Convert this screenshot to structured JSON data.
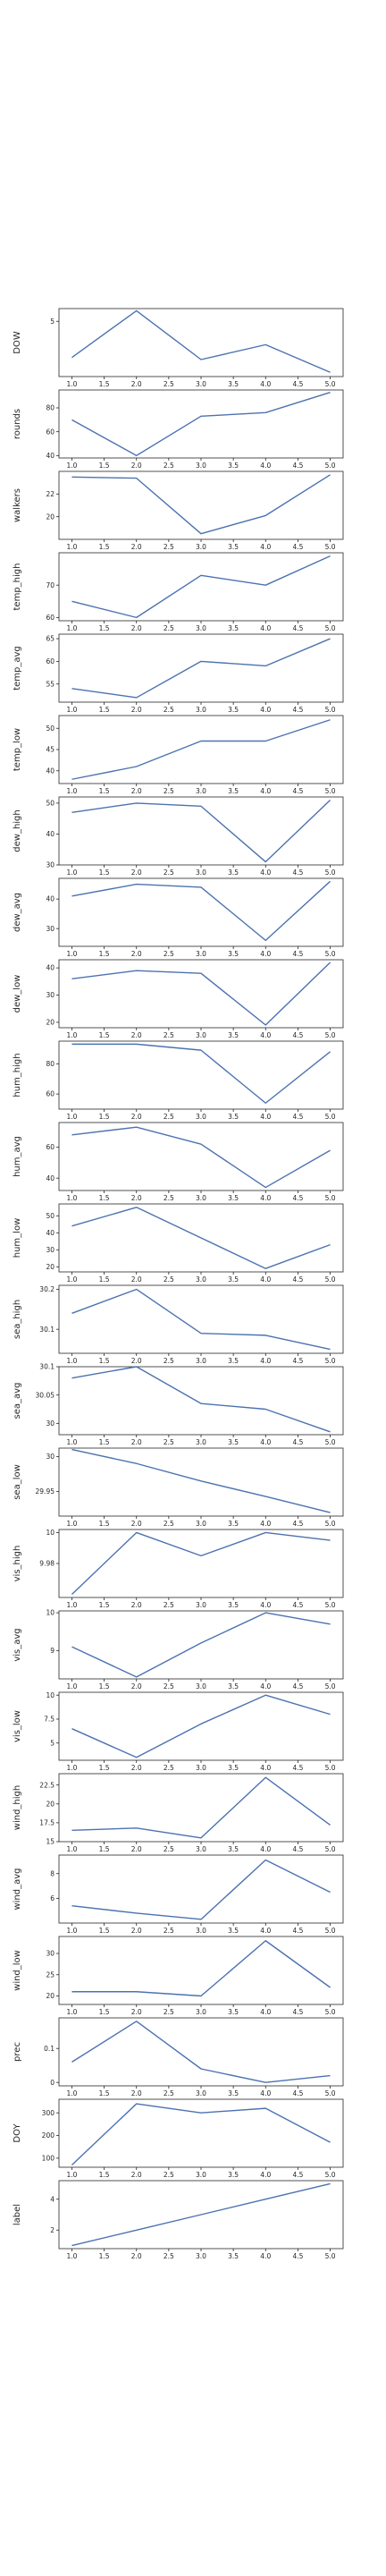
{
  "chart_data": [
    {
      "type": "line",
      "ylabel": "DOW",
      "x": [
        1,
        2,
        3,
        4,
        5
      ],
      "values": [
        3.3,
        5.5,
        3.2,
        3.9,
        2.6
      ],
      "ylim": [
        2.4,
        5.6
      ],
      "yticks": [
        5
      ]
    },
    {
      "type": "line",
      "ylabel": "rounds",
      "x": [
        1,
        2,
        3,
        4,
        5
      ],
      "values": [
        70,
        40,
        73,
        76,
        93
      ],
      "ylim": [
        38,
        95
      ],
      "yticks": [
        40,
        60,
        80
      ]
    },
    {
      "type": "line",
      "ylabel": "walkers",
      "x": [
        1,
        2,
        3,
        4,
        5
      ],
      "values": [
        23.5,
        23.4,
        18.5,
        20.1,
        23.7
      ],
      "ylim": [
        18,
        24
      ],
      "yticks": [
        20,
        22
      ]
    },
    {
      "type": "line",
      "ylabel": "temp_high",
      "x": [
        1,
        2,
        3,
        4,
        5
      ],
      "values": [
        65,
        60,
        73,
        70,
        79
      ],
      "ylim": [
        59,
        80
      ],
      "yticks": [
        60,
        70
      ]
    },
    {
      "type": "line",
      "ylabel": "temp_avg",
      "x": [
        1,
        2,
        3,
        4,
        5
      ],
      "values": [
        54,
        52,
        60,
        59,
        65
      ],
      "ylim": [
        51,
        66
      ],
      "yticks": [
        55,
        60,
        65
      ]
    },
    {
      "type": "line",
      "ylabel": "temp_low",
      "x": [
        1,
        2,
        3,
        4,
        5
      ],
      "values": [
        38,
        41,
        47,
        47,
        52
      ],
      "ylim": [
        37,
        53
      ],
      "yticks": [
        40,
        45,
        50
      ]
    },
    {
      "type": "line",
      "ylabel": "dew_high",
      "x": [
        1,
        2,
        3,
        4,
        5
      ],
      "values": [
        47,
        50,
        49,
        31,
        51
      ],
      "ylim": [
        30,
        52
      ],
      "yticks": [
        30,
        40,
        50
      ]
    },
    {
      "type": "line",
      "ylabel": "dew_avg",
      "x": [
        1,
        2,
        3,
        4,
        5
      ],
      "values": [
        41,
        45,
        44,
        26,
        46
      ],
      "ylim": [
        24,
        47
      ],
      "yticks": [
        30,
        40
      ]
    },
    {
      "type": "line",
      "ylabel": "dew_low",
      "x": [
        1,
        2,
        3,
        4,
        5
      ],
      "values": [
        36,
        39,
        38,
        19,
        42
      ],
      "ylim": [
        18,
        43
      ],
      "yticks": [
        20,
        30,
        40
      ]
    },
    {
      "type": "line",
      "ylabel": "hum_high",
      "x": [
        1,
        2,
        3,
        4,
        5
      ],
      "values": [
        93,
        93,
        89,
        54,
        88
      ],
      "ylim": [
        50,
        95
      ],
      "yticks": [
        60,
        80
      ]
    },
    {
      "type": "line",
      "ylabel": "hum_avg",
      "x": [
        1,
        2,
        3,
        4,
        5
      ],
      "values": [
        68,
        73,
        62,
        34,
        58
      ],
      "ylim": [
        32,
        76
      ],
      "yticks": [
        40,
        60
      ]
    },
    {
      "type": "line",
      "ylabel": "hum_low",
      "x": [
        1,
        2,
        3,
        4,
        5
      ],
      "values": [
        44,
        55,
        37,
        19,
        33
      ],
      "ylim": [
        17,
        57
      ],
      "yticks": [
        20,
        30,
        40,
        50
      ]
    },
    {
      "type": "line",
      "ylabel": "sea_high",
      "x": [
        1,
        2,
        3,
        4,
        5
      ],
      "values": [
        30.14,
        30.2,
        30.09,
        30.085,
        30.05
      ],
      "ylim": [
        30.04,
        30.21
      ],
      "yticks": [
        30.1,
        30.2
      ]
    },
    {
      "type": "line",
      "ylabel": "sea_avg",
      "x": [
        1,
        2,
        3,
        4,
        5
      ],
      "values": [
        30.08,
        30.1,
        30.035,
        30.025,
        29.985
      ],
      "ylim": [
        29.98,
        30.1
      ],
      "yticks": [
        30.0,
        30.05,
        30.1
      ]
    },
    {
      "type": "line",
      "ylabel": "sea_low",
      "x": [
        1,
        2,
        3,
        4,
        5
      ],
      "values": [
        30.01,
        29.99,
        29.965,
        29.943,
        29.92
      ],
      "ylim": [
        29.915,
        30.012
      ],
      "yticks": [
        29.95,
        30.0
      ]
    },
    {
      "type": "line",
      "ylabel": "vis_high",
      "x": [
        1,
        2,
        3,
        4,
        5
      ],
      "values": [
        9.96,
        10.0,
        9.985,
        10.0,
        9.995
      ],
      "ylim": [
        9.958,
        10.002
      ],
      "yticks": [
        9.98,
        10.0
      ]
    },
    {
      "type": "line",
      "ylabel": "vis_avg",
      "x": [
        1,
        2,
        3,
        4,
        5
      ],
      "values": [
        9.1,
        8.3,
        9.2,
        10.0,
        9.7
      ],
      "ylim": [
        8.25,
        10.05
      ],
      "yticks": [
        9,
        10
      ]
    },
    {
      "type": "line",
      "ylabel": "vis_low",
      "x": [
        1,
        2,
        3,
        4,
        5
      ],
      "values": [
        6.5,
        3.5,
        7.0,
        10.0,
        8.0
      ],
      "ylim": [
        3.2,
        10.3
      ],
      "yticks": [
        5.0,
        7.5,
        10.0
      ]
    },
    {
      "type": "line",
      "ylabel": "wind_high",
      "x": [
        1,
        2,
        3,
        4,
        5
      ],
      "values": [
        16.5,
        16.8,
        15.5,
        23.5,
        17.2
      ],
      "ylim": [
        15,
        24
      ],
      "yticks": [
        15.0,
        17.5,
        20.0,
        22.5
      ]
    },
    {
      "type": "line",
      "ylabel": "wind_avg",
      "x": [
        1,
        2,
        3,
        4,
        5
      ],
      "values": [
        5.4,
        4.8,
        4.3,
        9.1,
        6.5
      ],
      "ylim": [
        4,
        9.5
      ],
      "yticks": [
        6,
        8
      ]
    },
    {
      "type": "line",
      "ylabel": "wind_low",
      "x": [
        1,
        2,
        3,
        4,
        5
      ],
      "values": [
        21,
        21,
        20,
        33,
        22
      ],
      "ylim": [
        18,
        34
      ],
      "yticks": [
        20,
        25,
        30
      ]
    },
    {
      "type": "line",
      "ylabel": "prec",
      "x": [
        1,
        2,
        3,
        4,
        5
      ],
      "values": [
        0.06,
        0.18,
        0.04,
        0.0,
        0.02
      ],
      "ylim": [
        -0.01,
        0.19
      ],
      "yticks": [
        0.0,
        0.1
      ]
    },
    {
      "type": "line",
      "ylabel": "DOY",
      "x": [
        1,
        2,
        3,
        4,
        5
      ],
      "values": [
        70,
        340,
        300,
        320,
        170
      ],
      "ylim": [
        60,
        360
      ],
      "yticks": [
        100,
        200,
        300
      ]
    },
    {
      "type": "line",
      "ylabel": "label",
      "x": [
        1,
        2,
        3,
        4,
        5
      ],
      "values": [
        1,
        2,
        3,
        4,
        5
      ],
      "ylim": [
        0.8,
        5.2
      ],
      "yticks": [
        2,
        4
      ]
    }
  ],
  "x_ticks": [
    "1.0",
    "1.5",
    "2.0",
    "2.5",
    "3.0",
    "3.5",
    "4.0",
    "4.5",
    "5.0"
  ],
  "colors": {
    "series": "#4c72b0",
    "frame": "#262626",
    "text": "#262626"
  }
}
